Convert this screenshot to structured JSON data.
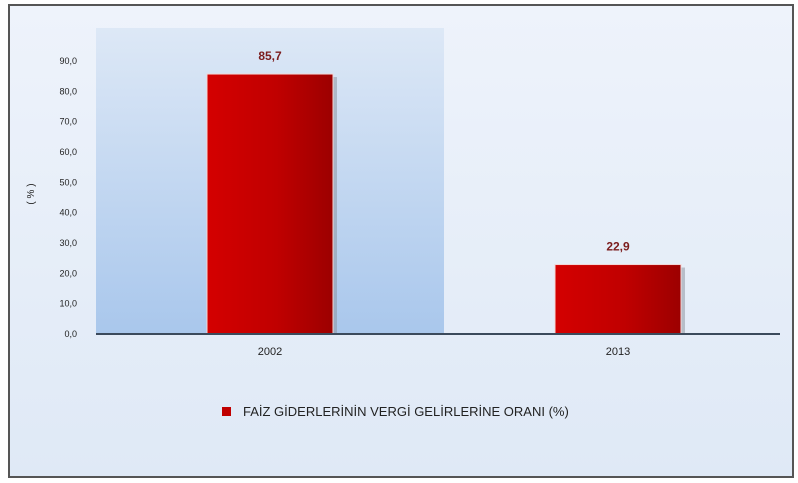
{
  "chart_data": {
    "type": "bar",
    "categories": [
      "2002",
      "2013"
    ],
    "values": [
      85.7,
      22.9
    ],
    "value_labels": [
      "85,7",
      "22,9"
    ],
    "yticks": [
      "0,0",
      "10,0",
      "20,0",
      "30,0",
      "40,0",
      "50,0",
      "60,0",
      "70,0",
      "80,0",
      "90,0"
    ],
    "ylabel": "( % )",
    "ylim": [
      0,
      90
    ],
    "series_name": "FAİZ GİDERLERİNİN VERGİ GELİRLERİNE ORANI (%)",
    "legend_position": "bottom",
    "colors": {
      "bar": "#c00000",
      "value_label": "#7b1c1c",
      "axis": "#3b4a5c",
      "plot_band": "#aac8ec"
    }
  }
}
